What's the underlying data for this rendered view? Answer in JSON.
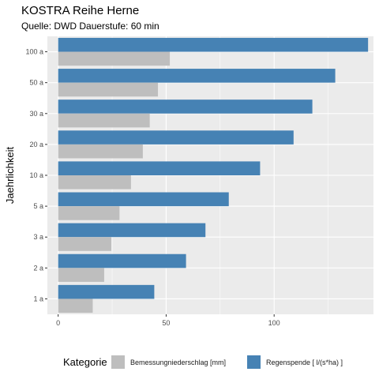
{
  "chart_data": {
    "type": "bar",
    "orientation": "horizontal",
    "title": "KOSTRA Reihe Herne",
    "subtitle": "Quelle: DWD Dauerstufe: 60 min",
    "ylabel": "Jaehrlichkeit",
    "xlabel": "",
    "xlim": [
      -5,
      146
    ],
    "xticks": [
      0,
      50,
      100
    ],
    "grid": true,
    "legend_position": "bottom",
    "legend_title": "Kategorie",
    "categories": [
      "1 a",
      "2 a",
      "3 a",
      "5 a",
      "10 a",
      "20 a",
      "30 a",
      "50 a",
      "100 a"
    ],
    "series": [
      {
        "name": "Regenspende [ l/(s*ha) ]",
        "color": "#4682B4",
        "values": [
          44.5,
          59.2,
          68.2,
          79.0,
          93.5,
          109.0,
          117.7,
          128.3,
          143.5
        ]
      },
      {
        "name": "Bemessungniederschlag [mm]",
        "color": "#BEBEBE",
        "values": [
          16.0,
          21.3,
          24.6,
          28.4,
          33.7,
          39.2,
          42.4,
          46.2,
          51.7
        ]
      }
    ]
  }
}
